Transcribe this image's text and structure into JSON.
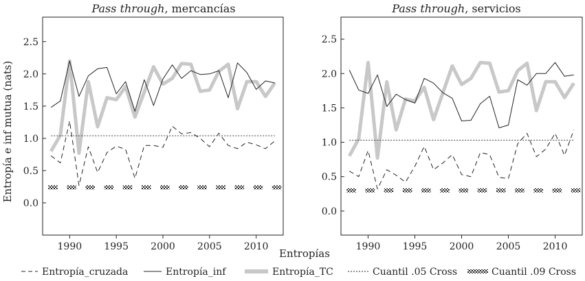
{
  "figure": {
    "ylabel": "Entropía e inf mutua (nats)",
    "xlabel": "Entropías",
    "legend_position": "bottom"
  },
  "legend": [
    {
      "name": "Entropía_cruzada",
      "style": "dashed"
    },
    {
      "name": "Entropía_inf",
      "style": "solid"
    },
    {
      "name": "Entropía_TC",
      "style": "thick-gray"
    },
    {
      "name": "Cuantil .05 Cross",
      "style": "dotted"
    },
    {
      "name": "Cuantil .09 Cross",
      "style": "checker"
    }
  ],
  "chart_data": [
    {
      "type": "line",
      "title_italic": "Pass through",
      "title_rest": ", mercancías",
      "x": [
        1988,
        1989,
        1990,
        1991,
        1992,
        1993,
        1994,
        1995,
        1996,
        1997,
        1998,
        1999,
        2000,
        2001,
        2002,
        2003,
        2004,
        2005,
        2006,
        2007,
        2008,
        2009,
        2010,
        2011,
        2012
      ],
      "xticks": [
        1990,
        1995,
        2000,
        2005,
        2010
      ],
      "xlim": [
        1987.1,
        2012.9
      ],
      "ylim": [
        -0.5,
        2.88
      ],
      "yticks": [
        0.0,
        0.5,
        1.0,
        1.5,
        2.0,
        2.5
      ],
      "ytick_labels": [
        "0.0",
        "0.5",
        "1.0",
        "1.5",
        "2.0",
        "2.5"
      ],
      "series": [
        {
          "name": "Entropía_cruzada",
          "values": [
            0.73,
            0.62,
            1.27,
            0.27,
            0.87,
            0.47,
            0.78,
            0.88,
            0.83,
            0.38,
            0.89,
            0.89,
            0.86,
            1.19,
            1.07,
            1.09,
            1.0,
            0.87,
            1.08,
            0.89,
            0.84,
            0.94,
            0.9,
            0.84,
            0.96
          ]
        },
        {
          "name": "Entropía_inf",
          "values": [
            1.48,
            1.58,
            2.2,
            1.65,
            1.97,
            2.08,
            2.1,
            1.69,
            1.88,
            1.42,
            1.91,
            1.51,
            1.92,
            2.14,
            1.93,
            2.05,
            1.99,
            2.0,
            2.05,
            1.63,
            2.17,
            2.02,
            1.76,
            1.89,
            1.86
          ]
        },
        {
          "name": "Entropía_TC",
          "values": [
            0.8,
            1.05,
            2.2,
            0.77,
            1.88,
            1.18,
            1.63,
            1.6,
            1.8,
            1.33,
            1.72,
            2.11,
            1.84,
            1.93,
            2.16,
            2.15,
            1.73,
            1.75,
            2.04,
            2.15,
            1.46,
            1.88,
            1.88,
            1.65,
            1.86
          ]
        },
        {
          "name": "Cuantil .05 Cross",
          "values": [
            1.04,
            1.04,
            1.04,
            1.04,
            1.04,
            1.04,
            1.04,
            1.04,
            1.04,
            1.04,
            1.04,
            1.04,
            1.04,
            1.04,
            1.04,
            1.04,
            1.04,
            1.04,
            1.04,
            1.04,
            1.04,
            1.04,
            1.04,
            1.04,
            1.04
          ]
        },
        {
          "name": "Cuantil .09 Cross",
          "values": [
            0.24,
            0.24,
            0.24,
            0.24,
            0.24,
            0.24,
            0.24,
            0.24,
            0.24,
            0.24,
            0.24,
            0.24,
            0.24,
            0.24,
            0.24,
            0.24,
            0.24,
            0.24,
            0.24,
            0.24,
            0.24,
            0.24,
            0.24,
            0.24,
            0.24
          ]
        }
      ]
    },
    {
      "type": "line",
      "title_italic": "Pass through",
      "title_rest": ", servicios",
      "x": [
        1988,
        1989,
        1990,
        1991,
        1992,
        1993,
        1994,
        1995,
        1996,
        1997,
        1998,
        1999,
        2000,
        2001,
        2002,
        2003,
        2004,
        2005,
        2006,
        2007,
        2008,
        2009,
        2010,
        2011,
        2012
      ],
      "xticks": [
        1990,
        1995,
        2000,
        2005,
        2010
      ],
      "xlim": [
        1987.1,
        2012.9
      ],
      "ylim": [
        -0.35,
        2.82
      ],
      "yticks": [
        0.0,
        0.5,
        1.0,
        1.5,
        2.0,
        2.5
      ],
      "ytick_labels": [
        "0.0",
        "0.5",
        "1.0",
        "1.5",
        "2.0",
        "2.5"
      ],
      "series": [
        {
          "name": "Entropía_cruzada",
          "values": [
            0.58,
            0.5,
            0.88,
            0.32,
            0.6,
            0.52,
            0.42,
            0.65,
            0.94,
            0.6,
            0.7,
            0.82,
            0.53,
            0.5,
            0.85,
            0.82,
            0.49,
            0.47,
            0.98,
            1.13,
            0.79,
            0.9,
            1.13,
            0.81,
            1.18
          ]
        },
        {
          "name": "Entropía_inf",
          "values": [
            2.05,
            1.76,
            1.71,
            1.98,
            1.52,
            1.7,
            1.62,
            1.57,
            1.93,
            1.86,
            1.72,
            1.64,
            1.31,
            1.32,
            1.56,
            1.67,
            1.21,
            1.25,
            1.91,
            1.83,
            2.0,
            2.0,
            2.16,
            1.96,
            1.98
          ]
        },
        {
          "name": "Entropía_TC",
          "values": [
            0.8,
            1.05,
            2.16,
            0.77,
            1.88,
            1.18,
            1.63,
            1.6,
            1.8,
            1.33,
            1.72,
            2.11,
            1.84,
            1.93,
            2.16,
            2.15,
            1.73,
            1.75,
            2.04,
            2.15,
            1.46,
            1.88,
            1.88,
            1.65,
            1.86
          ]
        },
        {
          "name": "Cuantil .05 Cross",
          "values": [
            1.03,
            1.03,
            1.03,
            1.03,
            1.03,
            1.03,
            1.03,
            1.03,
            1.03,
            1.03,
            1.03,
            1.03,
            1.03,
            1.03,
            1.03,
            1.03,
            1.03,
            1.03,
            1.03,
            1.03,
            1.03,
            1.03,
            1.03,
            1.03,
            1.03
          ]
        },
        {
          "name": "Cuantil .09 Cross",
          "values": [
            0.3,
            0.3,
            0.3,
            0.3,
            0.3,
            0.3,
            0.3,
            0.3,
            0.3,
            0.3,
            0.3,
            0.3,
            0.3,
            0.3,
            0.3,
            0.3,
            0.3,
            0.3,
            0.3,
            0.3,
            0.3,
            0.3,
            0.3,
            0.3,
            0.3
          ]
        }
      ]
    }
  ]
}
